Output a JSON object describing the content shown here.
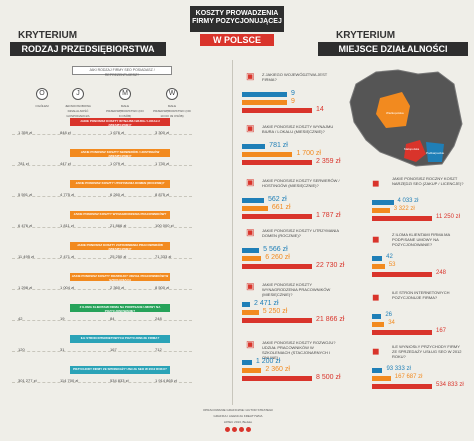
{
  "header": {
    "title_line1": "KOSZTY PROWADZENIA",
    "title_line2": "FIRMY POZYCJONUJĄCEJ",
    "title_sub": "W POLSCE",
    "left_kryterium": "KRYTERIUM",
    "left_sub": "RODZAJ PRZEDSIĘBIORSTWA",
    "right_kryterium": "KRYTERIUM",
    "right_sub": "MIEJSCE DZIAŁALNOŚCI"
  },
  "left": {
    "q_main": "JAKI RODZAJ FIRMY SEO POSIADASZ / REPREZENTUJESZ?",
    "types": [
      "OGÓŁEM",
      "JEDNOOSOBOWA DZIAŁALNOŚĆ GOSPODARCZA",
      "MAŁE PRZEDSIĘBIORSTWO (DO 9 OSÓB)",
      "MAŁE PRZEDSIĘBIORSTWO (OD 10 DO 49 OSÓB)"
    ],
    "type_codes": [
      "O",
      "J",
      "M",
      "W"
    ],
    "rows": [
      {
        "q": "JAKIE PONOSISZ KOSZTY WYNAJMU BIURA / LOKALU (MIESIĘCZNIE)?",
        "vals": [
          "1 359 zł",
          "848 zł",
          "1 676 zł",
          "3 300 zł"
        ]
      },
      {
        "q": "JAKIE PONOSISZ KOSZTY SERWERÓW / HOSTINGÓW (MIESIĘCZNIE)?",
        "vals": [
          "781 zł",
          "447 zł",
          "1 079 zł",
          "1 730 zł"
        ]
      },
      {
        "q": "JAKIE PONOSISZ KOSZTY UTRZYMANIA DOMEN (ROCZNIE)?",
        "vals": [
          "5 591 zł",
          "4 775 zł",
          "6 260 zł",
          "8 875 zł"
        ]
      },
      {
        "q": "JAKIE PONOSISZ KOSZTY WYNAGRODZENIA PRACOWNIKÓW?",
        "vals": [
          "6 476 zł",
          "1 811 zł",
          "21 866 zł",
          "100 000 zł"
        ]
      },
      {
        "q": "JAKIE PONOSISZ KOSZTY ZATRUDNIENIA PRACOWNIKÓW (MIESIĘCZNIE)?",
        "vals": [
          "11 495 zł",
          "2 471 zł",
          "25 250 zł",
          "71 333 zł"
        ]
      },
      {
        "q": "JAKIE PONOSISZ KOSZTY ROZWOJU? UDZIAŁ PRACOWNIKÓW W SZKOLENIACH",
        "vals": [
          "1 298 zł",
          "1 004 zł",
          "2 360 zł",
          "8 500 zł"
        ]
      },
      {
        "q": "Z ILOMA KLIENTAMI FIRMA NA PODPISANE UMOWY NA POZYCJONOWANIE?",
        "vals": [
          "42",
          "19",
          "84",
          "248"
        ]
      },
      {
        "q": "ILE STRON INTERNETOWYCH POZYCJONUJE FIRMA?",
        "vals": [
          "120",
          "31",
          "167",
          "712"
        ]
      },
      {
        "q": "PRZYCHODY FIRMY ZE SPRZEDAŻY USŁUG SEO W 2012 ROKU?",
        "vals": [
          "301 277 zł",
          "114 700 zł",
          "534 833 zł",
          "1 914 865 zł"
        ]
      }
    ]
  },
  "right": {
    "rows": [
      {
        "q": "Z JAKIEGO WOJEWÓDZTWA JEST FIRMA?",
        "vals": [
          "9",
          "9",
          "14"
        ]
      },
      {
        "q": "JAKIE PONOSISZ KOSZTY WYNAJMU BIURA / LOKALU (MIESIĘCZNIE)?",
        "vals": [
          "781 zł",
          "1 700 zł",
          "2 359 zł"
        ]
      },
      {
        "q": "JAKIE PONOSISZ KOSZTY SERWERÓW / HOSTINGÓW (MIESIĘCZNIE)?",
        "vals": [
          "562 zł",
          "661 zł",
          "1 787 zł"
        ]
      },
      {
        "q": "JAKIE PONOSISZ KOSZTY UTRZYMANIA DOMEN (ROCZNIE)?",
        "vals": [
          "5 566 zł",
          "6 260 zł",
          "22 730 zł"
        ]
      },
      {
        "q": "JAKIE PONOSISZ KOSZTY WYNAGRODZENIA PRACOWNIKÓW (MIESIĘCZNIE)?",
        "vals": [
          "2 471 zł",
          "5 250 zł",
          "21 866 zł"
        ]
      },
      {
        "q": "JAKIE PONOSISZ KOSZTY ROZWOJU? UDZIAŁ PRACOWNIKÓW W SZKOLENIACH (STACJONARNYCH I ONLINE)",
        "vals": [
          "1 200 zł",
          "2 360 zł",
          "8 500 zł"
        ]
      }
    ],
    "side": [
      {
        "q": "JAKIE PONOSISZ ROCZNY KOSZT NARZĘDZI SEO (ZAKUP / LICENCJE)?",
        "vals": [
          "4 033 zł",
          "3 322 zł",
          "11 250 zł"
        ]
      },
      {
        "q": "Z ILOMA KLIENTAMI FIRMA MA PODPISANE UMOWY NA POZYCJONOWANIE?",
        "vals": [
          "42",
          "53",
          "248"
        ]
      },
      {
        "q": "ILE STRON INTERNETOWYCH POZYCJONUJE FIRMA?",
        "vals": [
          "26",
          "34",
          "167"
        ]
      },
      {
        "q": "ILE WYNIOSŁY PRZYCHODY FIRMY ZE SPRZEDAŻY USŁUG SEO W 2012 ROKU?",
        "vals": [
          "93 333 zł",
          "167 687 zł",
          "534 833 zł"
        ]
      }
    ],
    "map_labels": [
      "Wielkopolska",
      "Małopolska",
      "Podkarpackie"
    ]
  },
  "footer": {
    "line1": "OPRACOWANIE GRAFICZNE I AUTOR STRATEGII",
    "line2": "GRAFIKA I AGENCJA KREATYWNA",
    "line3": "LIPIEC 2013, Bielsko"
  },
  "colors": {
    "orange": "#f28a1f",
    "blue": "#1f7fb7",
    "red": "#d9342b",
    "dark": "#2e2e2e"
  }
}
